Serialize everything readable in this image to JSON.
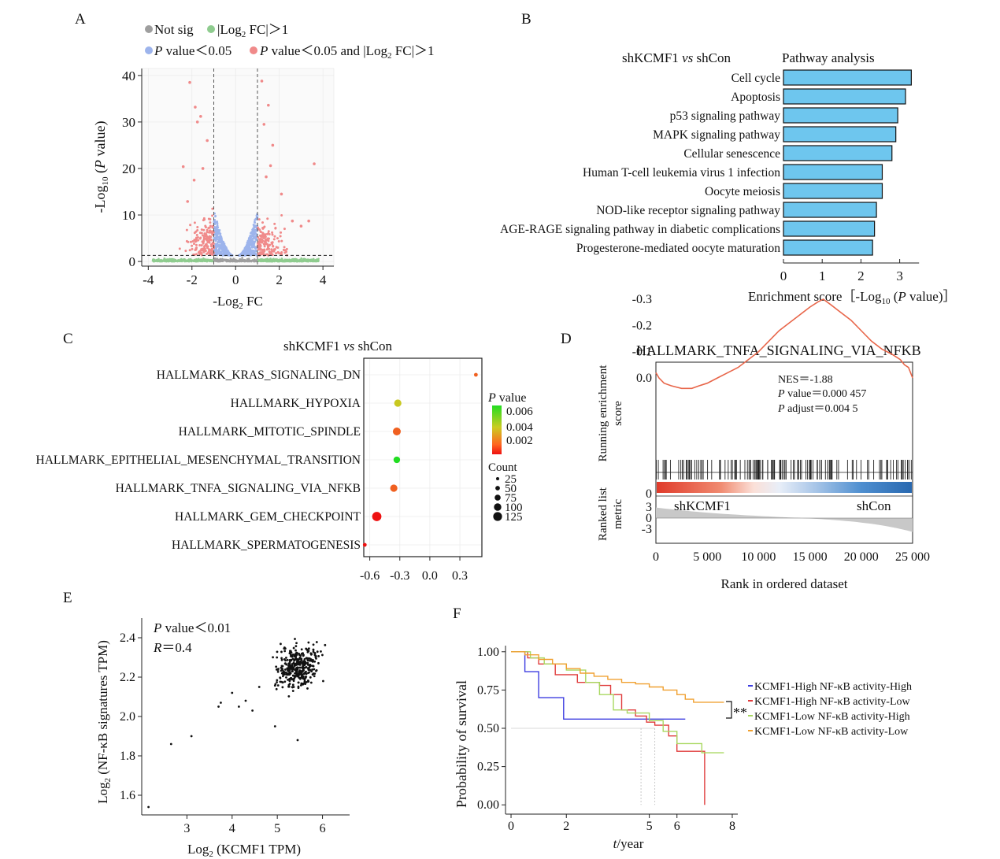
{
  "chart_data": [
    {
      "panel": "A",
      "type": "scatter",
      "title": "",
      "xlabel": "-Log₂ FC",
      "ylabel": "-Log₁₀ (P value)",
      "xlim": [
        -4.3,
        4.5
      ],
      "ylim": [
        -1,
        41.5
      ],
      "x_ticks": [
        -4,
        -2,
        0,
        2,
        4
      ],
      "y_ticks": [
        0,
        10,
        20,
        30,
        40
      ],
      "thresholds": {
        "x": [
          -1,
          1
        ],
        "y": 1.3
      },
      "legend": [
        {
          "name": "Not sig",
          "color": "#9e9e9e"
        },
        {
          "name": "|Log₂ FC|＞1",
          "color": "#8fcc8f"
        },
        {
          "name": "P value＜0.05",
          "color": "#9db4ec"
        },
        {
          "name": "P value＜0.05 and |Log₂ FC|＞1",
          "color": "#f08a8a"
        }
      ],
      "legend_placement": "top",
      "highlight_points": [
        {
          "x": -2.1,
          "y": 38.5
        },
        {
          "x": -1.85,
          "y": 33.2
        },
        {
          "x": -1.75,
          "y": 30
        },
        {
          "x": -1.6,
          "y": 31.2
        },
        {
          "x": -2.4,
          "y": 20.4
        },
        {
          "x": -1.3,
          "y": 26
        },
        {
          "x": -1.9,
          "y": 17.5
        },
        {
          "x": -1.5,
          "y": 20
        },
        {
          "x": 1.2,
          "y": 38.8
        },
        {
          "x": 1.5,
          "y": 33.6
        },
        {
          "x": 1.3,
          "y": 29.5
        },
        {
          "x": 1.7,
          "y": 25
        },
        {
          "x": 3.6,
          "y": 21
        },
        {
          "x": 1.6,
          "y": 20.6
        },
        {
          "x": 1.4,
          "y": 18.2
        },
        {
          "x": 2.1,
          "y": 14.5
        },
        {
          "x": 2.6,
          "y": 8.7
        },
        {
          "x": 3.0,
          "y": 7.6
        },
        {
          "x": 3.35,
          "y": 8.7
        },
        {
          "x": -2.2,
          "y": 12.9
        }
      ]
    },
    {
      "panel": "B",
      "type": "bar",
      "title": "Pathway analysis",
      "comparison": "shKCMF1 vs shCon",
      "xlabel": "Enrichment score［-Log₁₀ (P value)］",
      "xlim": [
        0,
        3.5
      ],
      "x_ticks": [
        0,
        1,
        2,
        3
      ],
      "bar_color": "#6ec6ee",
      "categories": [
        "Cell cycle",
        "Apoptosis",
        "p53 signaling pathway",
        "MAPK signaling pathway",
        "Cellular senescence",
        "Human T-cell leukemia virus 1 infection",
        "Oocyte meiosis",
        "NOD-like receptor signaling pathway",
        "AGE-RAGE signaling pathway in diabetic complications",
        "Progesterone-mediated oocyte maturation"
      ],
      "values": [
        3.3,
        3.15,
        2.95,
        2.9,
        2.8,
        2.55,
        2.55,
        2.4,
        2.35,
        2.3
      ]
    },
    {
      "panel": "C",
      "type": "scatter",
      "title": "shKCMF1 vs shCon",
      "xlim": [
        -0.66,
        0.52
      ],
      "x_ticks": [
        -0.6,
        -0.3,
        0.0,
        0.3
      ],
      "categories": [
        "HALLMARK_KRAS_SIGNALING_DN",
        "HALLMARK_HYPOXIA",
        "HALLMARK_MITOTIC_SPINDLE",
        "HALLMARK_EPITHELIAL_MESENCHYMAL_TRANSITION",
        "HALLMARK_TNFA_SIGNALING_VIA_NFKB",
        "HALLMARK_GEM_CHECKPOINT",
        "HALLMARK_SPERMATOGENESIS"
      ],
      "series": [
        {
          "name": "points",
          "x": [
            0.46,
            -0.32,
            -0.33,
            -0.33,
            -0.36,
            -0.53,
            -0.65
          ],
          "p_value": [
            0.0015,
            0.0045,
            0.002,
            0.006,
            0.0015,
            0.0002,
            0.0005
          ],
          "count": [
            15,
            55,
            65,
            45,
            55,
            90,
            15
          ]
        }
      ],
      "legend_p": {
        "title": "P value",
        "ticks": [
          "0.006",
          "0.004",
          "0.002"
        ],
        "colors": [
          "#22dd22",
          "#cccc22",
          "#ff6622",
          "#ee1111"
        ]
      },
      "legend_count": {
        "title": "Count",
        "values": [
          "25",
          "50",
          "75",
          "100",
          "125"
        ]
      }
    },
    {
      "panel": "D",
      "type": "line",
      "title": "HALLMARK_TNFA_SIGNALING_VIA_NFKB",
      "xlabel": "Rank in ordered dataset",
      "ylabel_top": "Running enrichment score",
      "ylabel_bottom": "Ranked list metric",
      "xlim": [
        0,
        25000
      ],
      "x_ticks": [
        "0",
        "5 000",
        "10 000",
        "15 000",
        "20 000",
        "25 000"
      ],
      "y_ticks_top": [
        "0.0",
        "-0.1",
        "-0.2",
        "-0.3"
      ],
      "y_ticks_bottom": [
        "3",
        "0",
        "-3"
      ],
      "x": [
        0,
        300,
        800,
        1500,
        2500,
        3500,
        4200,
        5000,
        6000,
        7000,
        8000,
        9000,
        10000,
        11000,
        12000,
        13000,
        14000,
        15000,
        15800,
        16300,
        17000,
        18000,
        19000,
        20000,
        21000,
        22000,
        23000,
        23800,
        24200,
        24600,
        25000
      ],
      "y": [
        -0.02,
        0.0,
        0.02,
        0.03,
        0.04,
        0.04,
        0.03,
        0.02,
        0.0,
        -0.02,
        -0.04,
        -0.07,
        -0.1,
        -0.14,
        -0.18,
        -0.21,
        -0.24,
        -0.27,
        -0.29,
        -0.3,
        -0.28,
        -0.25,
        -0.22,
        -0.18,
        -0.14,
        -0.11,
        -0.09,
        -0.07,
        -0.05,
        -0.04,
        0.0
      ],
      "annotations": [
        "NES＝-1.88",
        "P value＝0.000 457",
        "P adjust＝0.004 5"
      ],
      "group_labels": [
        "shKCMF1",
        "shCon"
      ]
    },
    {
      "panel": "E",
      "type": "scatter",
      "xlabel": "Log₂ (KCMF1 TPM)",
      "ylabel": "Log₂ (NF-κB signatures TPM)",
      "xlim": [
        2.0,
        6.6
      ],
      "ylim": [
        1.5,
        2.5
      ],
      "x_ticks": [
        3,
        4,
        5,
        6
      ],
      "y_ticks": [
        1.6,
        1.8,
        2.0,
        2.2,
        2.4
      ],
      "annotations": [
        "P value＜0.01",
        "R＝0.4"
      ],
      "outliers": [
        {
          "x": 2.15,
          "y": 1.54
        },
        {
          "x": 2.65,
          "y": 1.86
        },
        {
          "x": 3.1,
          "y": 1.9
        },
        {
          "x": 3.7,
          "y": 2.05
        },
        {
          "x": 3.75,
          "y": 2.07
        },
        {
          "x": 4.0,
          "y": 2.12
        },
        {
          "x": 4.15,
          "y": 2.05
        },
        {
          "x": 4.3,
          "y": 2.08
        },
        {
          "x": 4.45,
          "y": 2.03
        },
        {
          "x": 4.6,
          "y": 2.15
        },
        {
          "x": 5.45,
          "y": 1.88
        },
        {
          "x": 4.95,
          "y": 1.95
        }
      ]
    },
    {
      "panel": "F",
      "type": "line",
      "xlabel": "t/year",
      "ylabel": "Probability of survival",
      "xlim": [
        -0.2,
        8.2
      ],
      "ylim": [
        -0.04,
        1.04
      ],
      "x_ticks": [
        0,
        2,
        5,
        6,
        8
      ],
      "y_ticks": [
        "0.00",
        "0.25",
        "0.50",
        "0.75",
        "1.00"
      ],
      "significance": "**",
      "series": [
        {
          "name": "KCMF1-High NF-κB activity-High",
          "color": "#3c3ce0",
          "x": [
            0,
            0.4,
            0.5,
            0.9,
            1.0,
            1.8,
            1.9,
            6.3
          ],
          "y": [
            1.0,
            1.0,
            0.87,
            0.87,
            0.7,
            0.7,
            0.56,
            0.56
          ]
        },
        {
          "name": "KCMF1-High NF-κB activity-Low",
          "color": "#e03c3c",
          "x": [
            0,
            0.6,
            1.0,
            1.6,
            2.4,
            3.2,
            3.6,
            4.0,
            4.5,
            4.9,
            5.2,
            5.7,
            6.0,
            6.9,
            7.0
          ],
          "y": [
            1.0,
            0.96,
            0.92,
            0.85,
            0.8,
            0.78,
            0.72,
            0.62,
            0.58,
            0.54,
            0.52,
            0.45,
            0.35,
            0.35,
            0.0
          ]
        },
        {
          "name": "KCMF1-Low NF-κB activity-High",
          "color": "#a8d860",
          "x": [
            0,
            0.7,
            1.2,
            2.0,
            2.7,
            3.2,
            3.7,
            4.2,
            5.0,
            5.5,
            6.0,
            6.9,
            7.7
          ],
          "y": [
            1.0,
            0.96,
            0.92,
            0.88,
            0.8,
            0.72,
            0.62,
            0.6,
            0.55,
            0.48,
            0.4,
            0.34,
            0.34
          ]
        },
        {
          "name": "KCMF1-Low NF-κB activity-Low",
          "color": "#f0a030",
          "x": [
            0,
            0.5,
            1.0,
            1.5,
            2.0,
            2.5,
            3.0,
            3.5,
            4.0,
            4.5,
            5.0,
            5.5,
            6.0,
            6.3,
            6.6,
            7.7
          ],
          "y": [
            1.0,
            0.98,
            0.95,
            0.92,
            0.89,
            0.86,
            0.84,
            0.82,
            0.8,
            0.79,
            0.77,
            0.75,
            0.72,
            0.69,
            0.67,
            0.67
          ]
        }
      ]
    }
  ]
}
